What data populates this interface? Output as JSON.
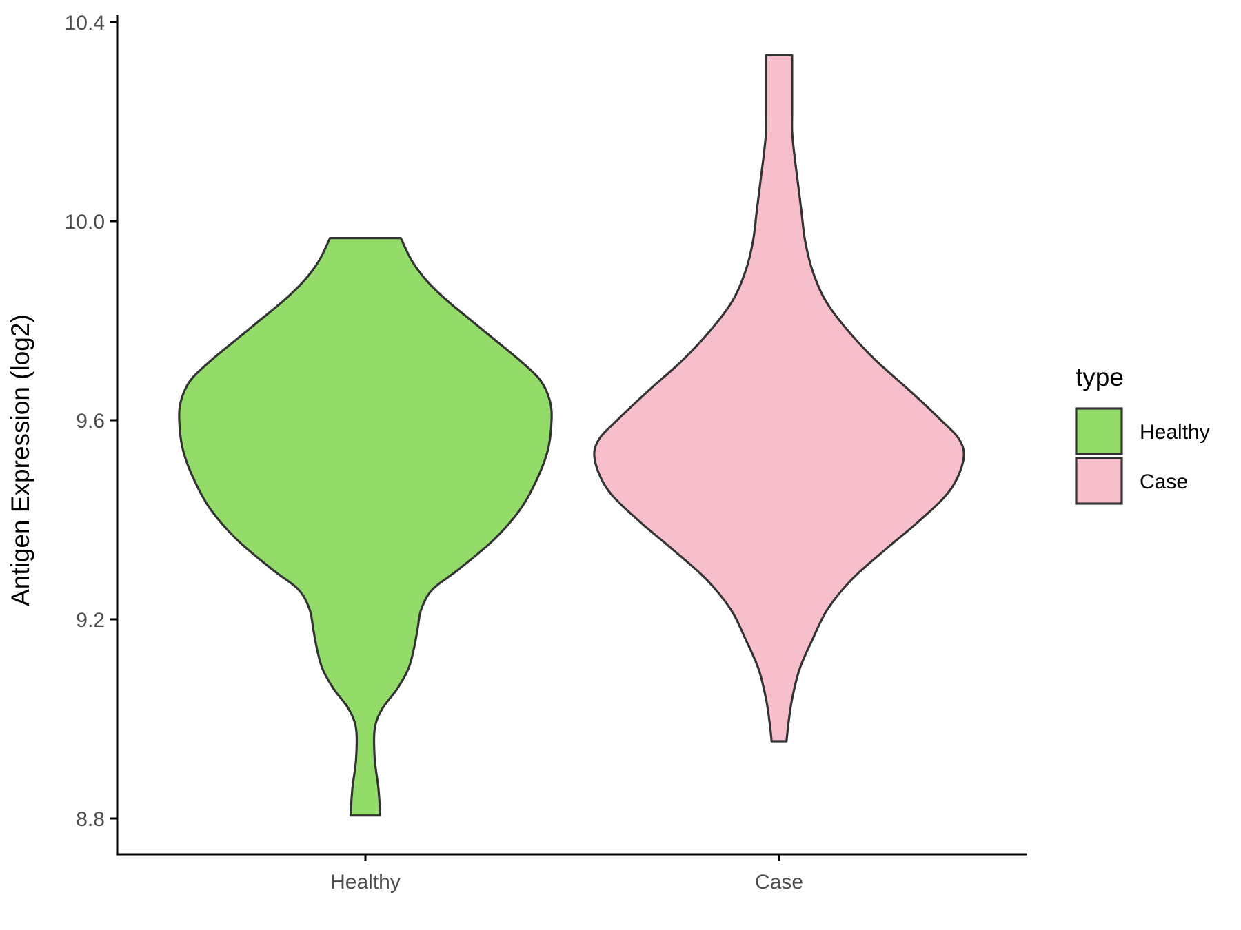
{
  "chart_data": {
    "type": "violin",
    "title": "",
    "xlabel": "",
    "ylabel": "Antigen Expression (log2)",
    "ylim": [
      8.73,
      10.42
    ],
    "yticks": [
      "8.8",
      "9.2",
      "9.6",
      "10.0",
      "10.4"
    ],
    "ytick_values": [
      8.8,
      9.2,
      9.6,
      10.0,
      10.4
    ],
    "categories": [
      "Healthy",
      "Case"
    ],
    "grid": false,
    "legend": {
      "title": "type",
      "position": "right",
      "entries": [
        "Healthy",
        "Case"
      ]
    },
    "series": [
      {
        "name": "Healthy",
        "color": "#93DC6A",
        "min": 8.806,
        "max": 9.966,
        "density_profile": [
          [
            8.806,
            0.08
          ],
          [
            8.86,
            0.07
          ],
          [
            8.92,
            0.05
          ],
          [
            8.98,
            0.05
          ],
          [
            9.02,
            0.09
          ],
          [
            9.06,
            0.17
          ],
          [
            9.1,
            0.23
          ],
          [
            9.14,
            0.26
          ],
          [
            9.18,
            0.28
          ],
          [
            9.22,
            0.3
          ],
          [
            9.26,
            0.36
          ],
          [
            9.3,
            0.5
          ],
          [
            9.36,
            0.69
          ],
          [
            9.42,
            0.83
          ],
          [
            9.48,
            0.92
          ],
          [
            9.54,
            0.98
          ],
          [
            9.6,
            1.0
          ],
          [
            9.64,
            0.99
          ],
          [
            9.68,
            0.94
          ],
          [
            9.72,
            0.83
          ],
          [
            9.76,
            0.7
          ],
          [
            9.8,
            0.57
          ],
          [
            9.84,
            0.44
          ],
          [
            9.88,
            0.33
          ],
          [
            9.92,
            0.25
          ],
          [
            9.966,
            0.19
          ]
        ]
      },
      {
        "name": "Case",
        "color": "#F7BFCB",
        "min": 8.955,
        "max": 10.333,
        "density_profile": [
          [
            8.955,
            0.04
          ],
          [
            8.99,
            0.05
          ],
          [
            9.04,
            0.07
          ],
          [
            9.1,
            0.11
          ],
          [
            9.16,
            0.18
          ],
          [
            9.22,
            0.26
          ],
          [
            9.28,
            0.39
          ],
          [
            9.34,
            0.57
          ],
          [
            9.4,
            0.76
          ],
          [
            9.46,
            0.92
          ],
          [
            9.52,
            0.99
          ],
          [
            9.56,
            0.97
          ],
          [
            9.6,
            0.87
          ],
          [
            9.66,
            0.7
          ],
          [
            9.72,
            0.52
          ],
          [
            9.78,
            0.37
          ],
          [
            9.84,
            0.25
          ],
          [
            9.9,
            0.18
          ],
          [
            9.96,
            0.14
          ],
          [
            10.02,
            0.12
          ],
          [
            10.08,
            0.1
          ],
          [
            10.14,
            0.08
          ],
          [
            10.18,
            0.07
          ],
          [
            10.22,
            0.07
          ],
          [
            10.28,
            0.07
          ],
          [
            10.333,
            0.07
          ]
        ]
      }
    ]
  }
}
